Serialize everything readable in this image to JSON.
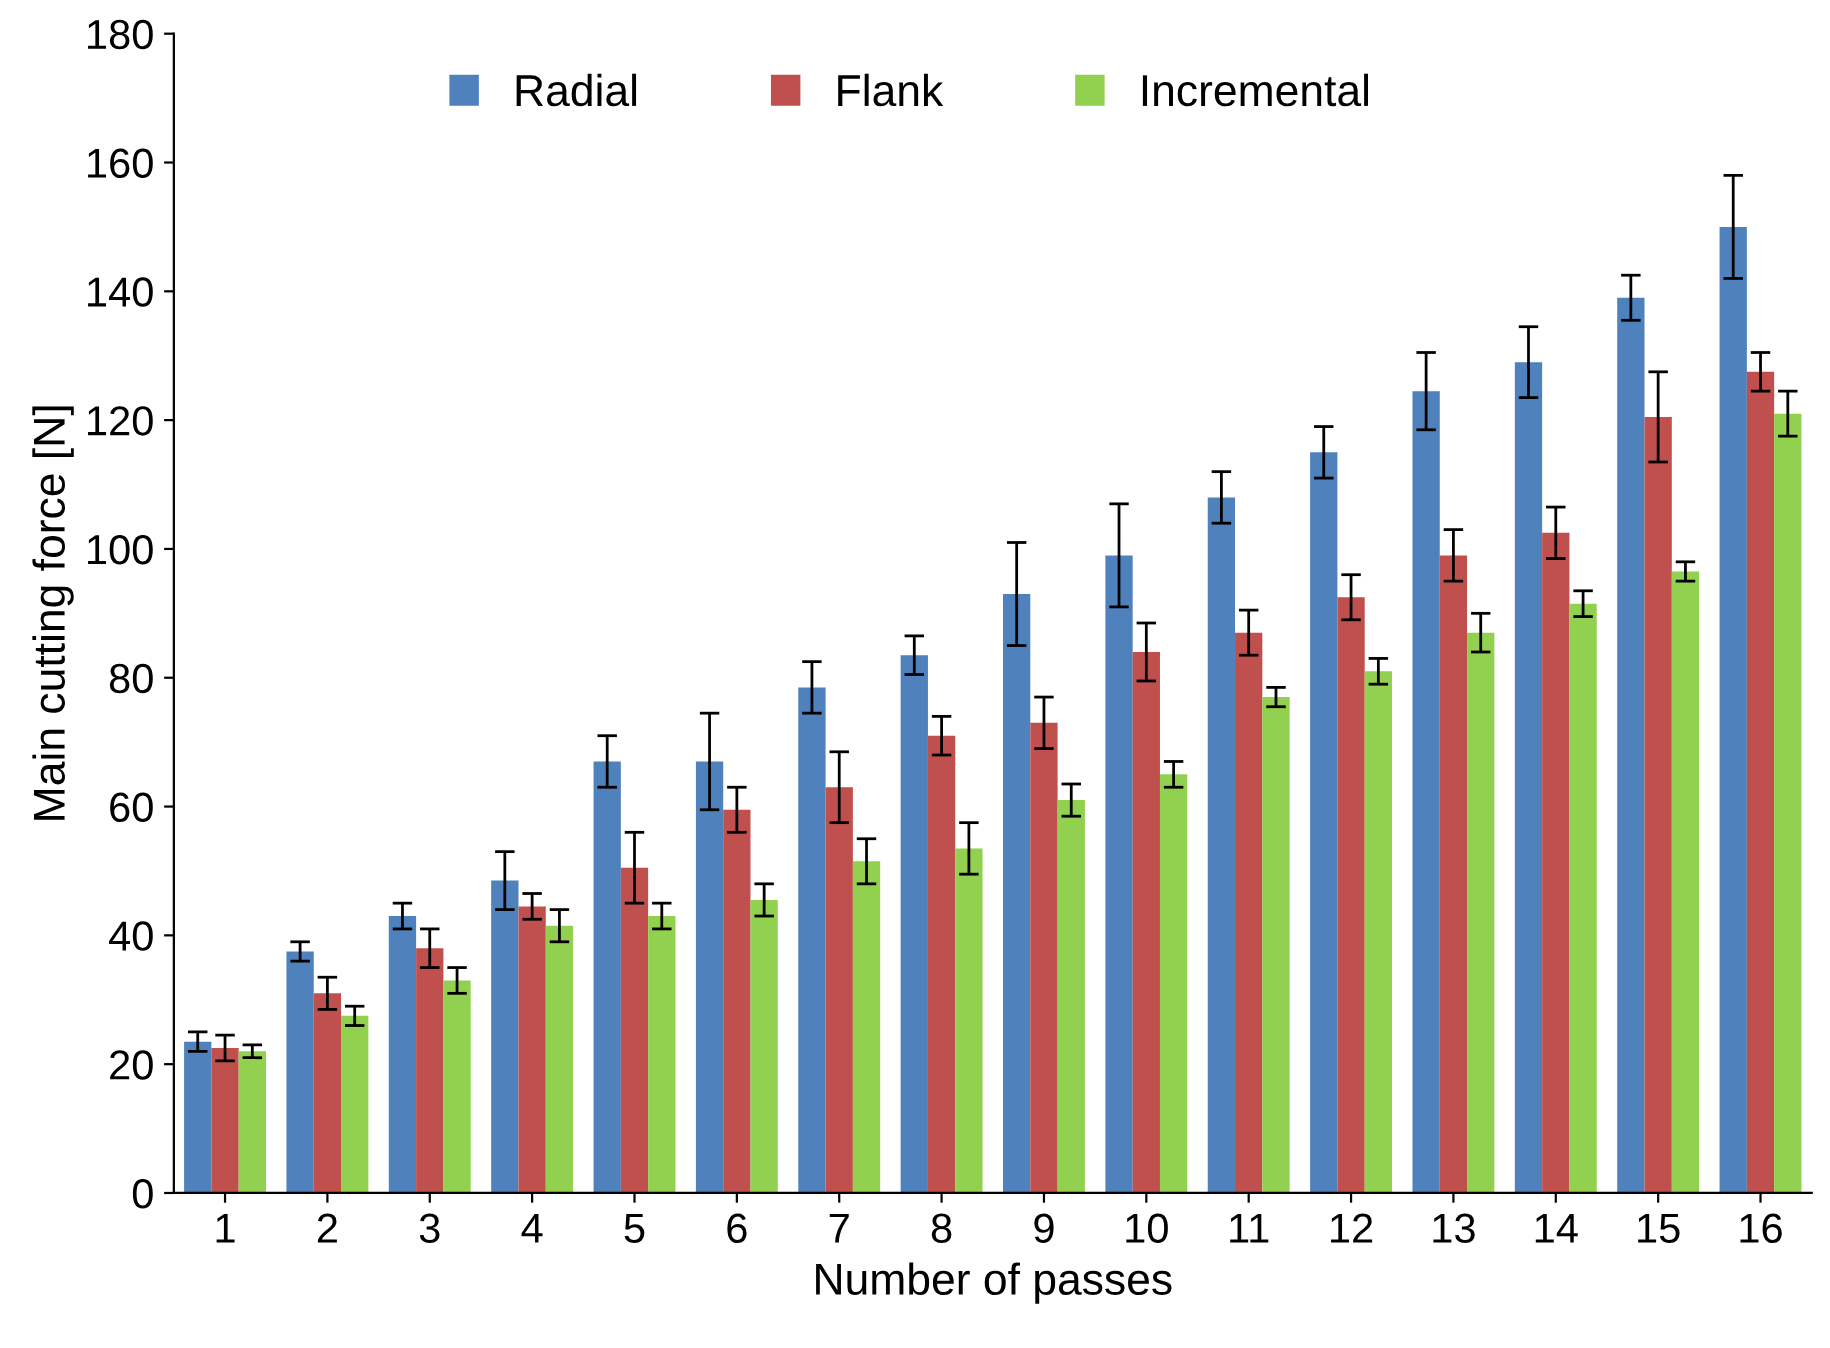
{
  "chart_data": {
    "type": "bar",
    "xlabel": "Number of passes",
    "ylabel": "Main cutting force [N]",
    "categories": [
      "1",
      "2",
      "3",
      "4",
      "5",
      "6",
      "7",
      "8",
      "9",
      "10",
      "11",
      "12",
      "13",
      "14",
      "15",
      "16"
    ],
    "series": [
      {
        "name": "Radial",
        "color": "#4f81bd",
        "values": [
          23.5,
          37.5,
          43,
          48.5,
          67,
          67,
          78.5,
          83.5,
          93,
          99,
          108,
          115,
          124.5,
          129,
          139,
          150
        ],
        "errors": [
          1.5,
          1.5,
          2,
          4.5,
          4,
          7.5,
          4,
          3,
          8,
          8,
          4,
          4,
          6,
          5.5,
          3.5,
          8
        ]
      },
      {
        "name": "Flank",
        "color": "#c0504d",
        "values": [
          22.5,
          31,
          38,
          44.5,
          50.5,
          59.5,
          63,
          71,
          73,
          84,
          87,
          92.5,
          99,
          102.5,
          120.5,
          127.5
        ],
        "errors": [
          2,
          2.5,
          3,
          2,
          5.5,
          3.5,
          5.5,
          3,
          4,
          4.5,
          3.5,
          3.5,
          4,
          4,
          7,
          3
        ]
      },
      {
        "name": "Incremental",
        "color": "#92d050",
        "values": [
          22,
          27.5,
          33,
          41.5,
          43,
          45.5,
          51.5,
          53.5,
          61,
          65,
          77,
          81,
          87,
          91.5,
          96.5,
          121
        ],
        "errors": [
          1,
          1.5,
          2,
          2.5,
          2,
          2.5,
          3.5,
          4,
          2.5,
          2,
          1.5,
          2,
          3,
          2,
          1.5,
          3.5
        ]
      }
    ],
    "ylim": [
      0,
      180
    ],
    "yticks": [
      0,
      20,
      40,
      60,
      80,
      100,
      120,
      140,
      160,
      180
    ],
    "legend": "top",
    "grid": false
  }
}
